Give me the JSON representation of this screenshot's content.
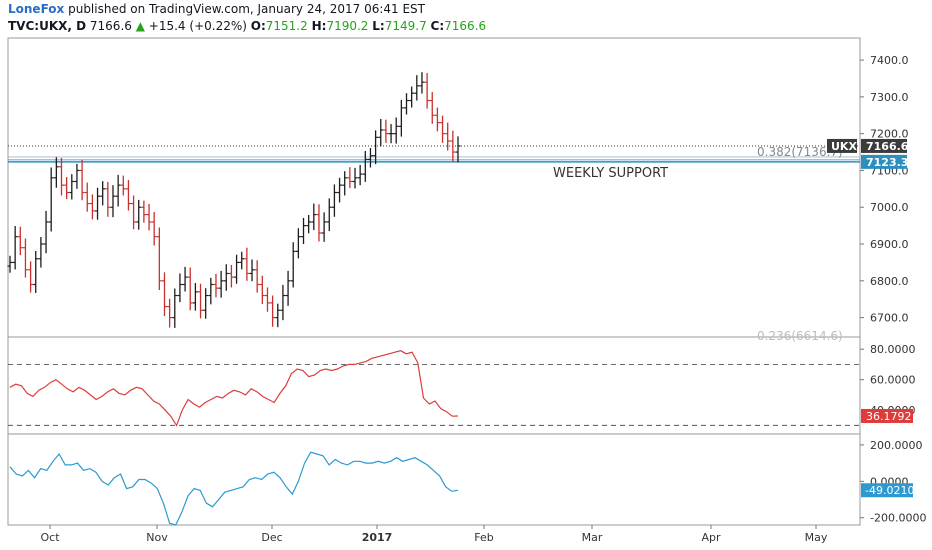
{
  "header": {
    "author": "LoneFox",
    "published_text": " published on TradingView.com, January 24, 2017 06:41 EST",
    "symbol": "TVC:UKX, D",
    "last": "7166.6",
    "change": "+15.4 (+0.22%)",
    "o_label": "O:",
    "o_value": "7151.2",
    "h_label": "H:",
    "h_value": "7190.2",
    "l_label": "L:",
    "l_value": "7149.7",
    "c_label": "C:",
    "c_value": "7166.6"
  },
  "colors": {
    "up": "#1d1d1d",
    "down": "#c9302c",
    "rsi": "#e03b3b",
    "cci": "#2c9ad1",
    "support": "#2c8fbd",
    "text_green": "#26a31a"
  },
  "chart_data": [
    {
      "type": "bar",
      "subtype": "ohlc",
      "name": "UKX",
      "ylim": [
        6650,
        7460
      ],
      "yticks": [
        6700,
        6800,
        6900,
        7000,
        7100,
        7200,
        7300,
        7400
      ],
      "ytick_labels": [
        "6700.0",
        "6800.0",
        "6900.0",
        "7000.0",
        "7100.0",
        "7200.0",
        "7300.0",
        "7400.0"
      ],
      "xticks": [
        "Oct",
        "Nov",
        "Dec",
        "2017",
        "Feb",
        "Mar",
        "Apr",
        "May"
      ],
      "last_price_label": "UKX",
      "last_price_value": 7166.6,
      "last_price_text": "7166.6",
      "support_level": 7123.3,
      "support_value_text": "7123.3",
      "support_text": "WEEKLY SUPPORT",
      "fib_label": "0.382(7136.7)",
      "fib_value": 7136.7,
      "fib_label_lower": "0.236(6614.6)",
      "closes": [
        6850,
        6920,
        6890,
        6830,
        6790,
        6860,
        6900,
        6960,
        7080,
        7110,
        7060,
        7040,
        7070,
        7100,
        7040,
        7010,
        6990,
        7030,
        7050,
        7000,
        7030,
        7060,
        7050,
        7010,
        6960,
        7000,
        6980,
        6960,
        6920,
        6800,
        6730,
        6700,
        6760,
        6790,
        6810,
        6740,
        6770,
        6720,
        6760,
        6790,
        6780,
        6800,
        6820,
        6810,
        6850,
        6860,
        6820,
        6830,
        6790,
        6760,
        6740,
        6700,
        6720,
        6760,
        6800,
        6880,
        6920,
        6950,
        6960,
        6980,
        6930,
        6960,
        7000,
        7040,
        7060,
        7080,
        7070,
        7080,
        7090,
        7130,
        7140,
        7190,
        7210,
        7200,
        7200,
        7220,
        7270,
        7290,
        7310,
        7330,
        7340,
        7290,
        7250,
        7230,
        7200,
        7180,
        7150,
        7166.6
      ]
    },
    {
      "type": "line",
      "name": "RSI",
      "ylim": [
        25,
        88
      ],
      "yticks": [
        60,
        80
      ],
      "ytick_labels": [
        "60.0000",
        "80.0000"
      ],
      "levels": [
        70,
        30
      ],
      "partial_label": "40.0000",
      "last_value": 36.1792,
      "last_text": "36.1792",
      "values": [
        55,
        57,
        56,
        51,
        49,
        53,
        55,
        58,
        60,
        57,
        54,
        52,
        55,
        53,
        50,
        47,
        49,
        52,
        54,
        51,
        50,
        53,
        55,
        54,
        50,
        46,
        44,
        40,
        36,
        30,
        40,
        47,
        44,
        42,
        45,
        47,
        49,
        48,
        51,
        53,
        52,
        50,
        54,
        52,
        49,
        47,
        45,
        51,
        56,
        64,
        67,
        66,
        62,
        63,
        66,
        67,
        66,
        67,
        69,
        70,
        70,
        71,
        72,
        74,
        75,
        76,
        77,
        78,
        79,
        77,
        78,
        71,
        48,
        44,
        46,
        41,
        39,
        36,
        36.1792
      ]
    },
    {
      "type": "line",
      "name": "CCI",
      "ylim": [
        -240,
        260
      ],
      "yticks": [
        200,
        0,
        -200
      ],
      "ytick_labels": [
        "200.0000",
        "0.0000",
        "-200.0000"
      ],
      "last_value": -49.021,
      "last_text": "-49.0210",
      "values": [
        80,
        40,
        30,
        60,
        20,
        70,
        60,
        110,
        150,
        90,
        90,
        100,
        60,
        70,
        50,
        0,
        -20,
        20,
        40,
        -40,
        -30,
        10,
        10,
        -10,
        -40,
        -120,
        -230,
        -240,
        -170,
        -80,
        -40,
        -50,
        -120,
        -140,
        -100,
        -60,
        -50,
        -40,
        -30,
        10,
        20,
        10,
        40,
        50,
        20,
        -30,
        -70,
        0,
        100,
        160,
        150,
        140,
        90,
        120,
        100,
        90,
        110,
        110,
        100,
        100,
        110,
        100,
        110,
        130,
        110,
        120,
        130,
        110,
        90,
        60,
        30,
        -30,
        -55,
        -49.021
      ]
    }
  ]
}
